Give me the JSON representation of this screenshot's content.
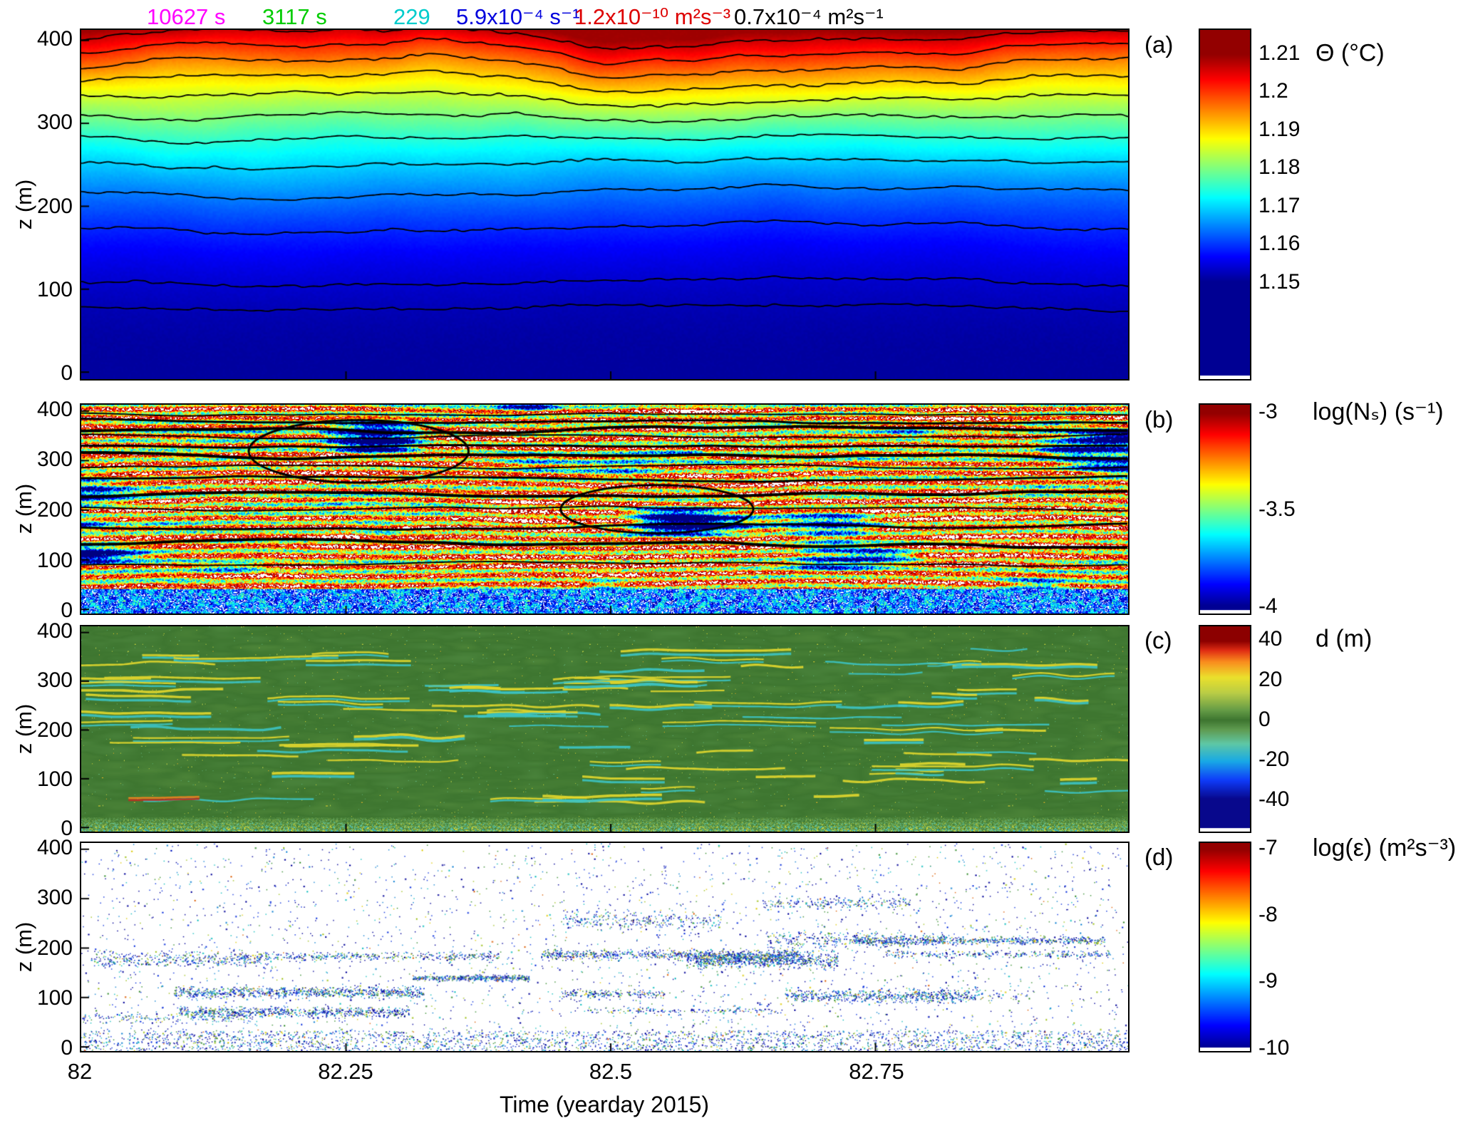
{
  "figure": {
    "xlabel": "Time (yearday 2015)",
    "x_tick_labels": [
      "82",
      "82.25",
      "82.5",
      "82.75"
    ],
    "background": "#ffffff"
  },
  "header": {
    "stats": [
      {
        "text": "10627 s",
        "color": "#ff00ff"
      },
      {
        "text": "3117 s",
        "color": "#00cc00"
      },
      {
        "text": "229",
        "color": "#00cccc"
      },
      {
        "text": "5.9x10⁻⁴ s⁻¹",
        "color": "#0000dd"
      },
      {
        "text": "1.2x10⁻¹⁰ m²s⁻³",
        "color": "#dd0000"
      },
      {
        "text": "0.7x10⁻⁴ m²s⁻¹",
        "color": "#000000"
      }
    ],
    "scale_bars": [
      {
        "label_ref": "10627 s",
        "color": "#ff00ff"
      },
      {
        "label_ref": "3117 s",
        "color": "#00cc00"
      }
    ]
  },
  "panels": [
    {
      "label": "(a)",
      "ylabel": "z (m)",
      "y_tick_labels": [
        "400",
        "300",
        "200",
        "100",
        "0"
      ],
      "colorbar": {
        "title": "Θ (°C)",
        "tick_labels": [
          "1.21",
          "1.2",
          "1.19",
          "1.18",
          "1.17",
          "1.16",
          "1.15"
        ]
      }
    },
    {
      "label": "(b)",
      "ylabel": "z (m)",
      "y_tick_labels": [
        "400",
        "300",
        "200",
        "100",
        "0"
      ],
      "colorbar": {
        "title": "log(Nₛ) (s⁻¹)",
        "tick_labels": [
          "-3",
          "-3.5",
          "-4"
        ]
      }
    },
    {
      "label": "(c)",
      "ylabel": "z (m)",
      "y_tick_labels": [
        "400",
        "300",
        "200",
        "100",
        "0"
      ],
      "colorbar": {
        "title": "d (m)",
        "tick_labels": [
          "40",
          "20",
          "0",
          "-20",
          "-40"
        ]
      }
    },
    {
      "label": "(d)",
      "ylabel": "z (m)",
      "y_tick_labels": [
        "400",
        "300",
        "200",
        "100",
        "0"
      ],
      "colorbar": {
        "title": "log(ε) (m²s⁻³)",
        "tick_labels": [
          "-7",
          "-8",
          "-9",
          "-10"
        ]
      }
    }
  ],
  "chart_data": [
    {
      "panel": "a",
      "type": "heatmap",
      "x": {
        "label": "Time (yearday 2015)",
        "range": [
          82.0,
          82.99
        ],
        "ticks": [
          82.0,
          82.25,
          82.5,
          82.75
        ]
      },
      "y": {
        "label": "z (m)",
        "range": [
          0,
          412
        ],
        "ticks": [
          0,
          100,
          200,
          300,
          400
        ]
      },
      "color": {
        "label": "Θ (°C)",
        "range": [
          1.15,
          1.21
        ],
        "colormap": "jet",
        "ticks": [
          1.21,
          1.2,
          1.19,
          1.18,
          1.17,
          1.16,
          1.15
        ]
      },
      "contours": {
        "interval_C": 0.005,
        "color": "black",
        "style": "wavy isotherms displaced by internal waves"
      },
      "approx_mean_profile": {
        "z_m": [
          0,
          50,
          100,
          150,
          200,
          250,
          300,
          330,
          360,
          385,
          400
        ],
        "theta_C": [
          1.147,
          1.149,
          1.153,
          1.158,
          1.166,
          1.173,
          1.181,
          1.188,
          1.196,
          1.204,
          1.21
        ]
      },
      "overlays": [
        {
          "type": "scale_bar",
          "label": "10627 s",
          "color": "#ff00ff",
          "x_span": [
            82.06,
            82.15
          ],
          "z_m": 403
        },
        {
          "type": "scale_bar",
          "label": "3117 s",
          "color": "#00cc00",
          "x_span": [
            82.17,
            82.2
          ],
          "z_m": 403
        }
      ]
    },
    {
      "panel": "b",
      "type": "heatmap",
      "x": {
        "label": "Time (yearday 2015)",
        "range": [
          82.0,
          82.99
        ],
        "ticks": [
          82.0,
          82.25,
          82.5,
          82.75
        ]
      },
      "y": {
        "label": "z (m)",
        "range": [
          0,
          412
        ],
        "ticks": [
          0,
          100,
          200,
          300,
          400
        ]
      },
      "color": {
        "label": "log(Nₛ) (s⁻¹)",
        "range": [
          -4,
          -3
        ],
        "colormap": "jet",
        "ticks": [
          -3,
          -3.5,
          -4
        ]
      },
      "features": [
        {
          "type": "ellipse",
          "x_center": 82.26,
          "z_center_m": 320,
          "x_halfwidth_yearday": 0.105,
          "z_halfheight_m": 62,
          "color": "black"
        },
        {
          "type": "ellipse",
          "x_center": 82.54,
          "z_center_m": 205,
          "x_halfwidth_yearday": 0.09,
          "z_halfheight_m": 47,
          "color": "black"
        }
      ],
      "description": "Layered high-stratification sheets (red/orange, log Ns ≈ -3 to -3.2) separated by weaker layers; low-N patches (cyan/blue/white) increase toward the bottom; black isotherm contours overlaid; two elliptical regions highlighted."
    },
    {
      "panel": "c",
      "type": "heatmap",
      "x": {
        "label": "Time (yearday 2015)",
        "range": [
          82.0,
          82.99
        ],
        "ticks": [
          82.0,
          82.25,
          82.5,
          82.75
        ]
      },
      "y": {
        "label": "z (m)",
        "range": [
          0,
          412
        ],
        "ticks": [
          0,
          100,
          200,
          300,
          400
        ]
      },
      "color": {
        "label": "d (m)",
        "range": [
          -40,
          40
        ],
        "colormap": "jet-like diverging (dark green at 0)",
        "ticks": [
          40,
          20,
          0,
          -20,
          -40
        ]
      },
      "description": "Thorpe displacement d; background ≈ 0 m (green) with sparse horizontal overturn streaks of paired positive (yellow, ~+10 to +20 m) and negative (cyan, ~-10 to -20 m) displacements, denser near the bottom boundary."
    },
    {
      "panel": "d",
      "type": "heatmap",
      "x": {
        "label": "Time (yearday 2015)",
        "range": [
          82.0,
          82.99
        ],
        "ticks": [
          82.0,
          82.25,
          82.5,
          82.75
        ]
      },
      "y": {
        "label": "z (m)",
        "range": [
          0,
          412
        ],
        "ticks": [
          0,
          100,
          200,
          300,
          400
        ]
      },
      "color": {
        "label": "log(ε) (m²s⁻³)",
        "range": [
          -10,
          -7
        ],
        "colormap": "jet",
        "ticks": [
          -7,
          -8,
          -9,
          -10
        ]
      },
      "description": "Turbulent dissipation rate; mostly below detection (white) with sparse speckled patches, predominantly log ε ≈ -10 to -9 (blue/cyan), concentrated near the bottom and in isolated mid-depth wave-breaking patches."
    }
  ]
}
